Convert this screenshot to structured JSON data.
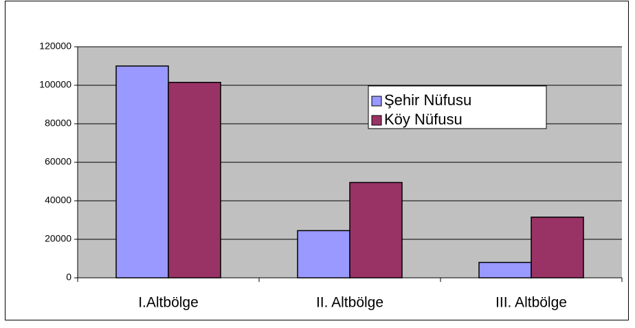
{
  "chart_data": {
    "type": "bar",
    "categories": [
      "I.Altbölge",
      "II. Altbölge",
      "III. Altbölge"
    ],
    "series": [
      {
        "name": "Şehir Nüfusu",
        "color": "#9999ff",
        "values": [
          110000,
          24500,
          8000
        ]
      },
      {
        "name": "Köy Nüfusu",
        "color": "#993366",
        "values": [
          101500,
          49500,
          31500
        ]
      }
    ],
    "ylim": [
      0,
      120000
    ],
    "yticks": [
      0,
      20000,
      40000,
      60000,
      80000,
      100000,
      120000
    ],
    "grid": true,
    "legend_position": "upper-right",
    "plot_background": "#c0c0c0"
  }
}
